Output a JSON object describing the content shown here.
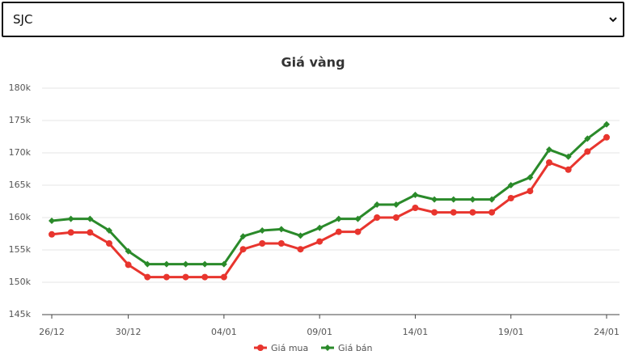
{
  "dropdown": {
    "value": "SJC"
  },
  "chart_data": {
    "type": "line",
    "title": "Giá vàng",
    "categories": [
      "26/12",
      null,
      null,
      null,
      "30/12",
      null,
      null,
      null,
      null,
      "04/01",
      null,
      null,
      null,
      null,
      "09/01",
      null,
      null,
      null,
      null,
      "14/01",
      null,
      null,
      null,
      null,
      "19/01",
      null,
      null,
      null,
      null,
      "24/01"
    ],
    "series": [
      {
        "name": "Giá mua",
        "color": "#e8352e",
        "marker": "circle",
        "values": [
          157.4,
          157.7,
          157.7,
          156.0,
          152.7,
          150.8,
          150.8,
          150.8,
          150.8,
          150.8,
          155.1,
          156.0,
          156.0,
          155.1,
          156.3,
          157.8,
          157.8,
          160.0,
          160.0,
          161.5,
          160.8,
          160.8,
          160.8,
          160.8,
          163.0,
          164.1,
          168.5,
          167.4,
          170.2,
          172.4
        ]
      },
      {
        "name": "Giá bán",
        "color": "#2a8a2a",
        "marker": "diamond",
        "values": [
          159.5,
          159.8,
          159.8,
          158.0,
          154.8,
          152.8,
          152.8,
          152.8,
          152.8,
          152.8,
          157.1,
          158.0,
          158.2,
          157.2,
          158.4,
          159.8,
          159.8,
          162.0,
          162.0,
          163.5,
          162.8,
          162.8,
          162.8,
          162.8,
          165.0,
          166.2,
          170.5,
          169.4,
          172.2,
          174.4
        ]
      }
    ],
    "ylim": [
      145,
      180
    ],
    "yticks": [
      {
        "value": 145,
        "label": "145k"
      },
      {
        "value": 150,
        "label": "150k"
      },
      {
        "value": 155,
        "label": "155k"
      },
      {
        "value": 160,
        "label": "160k"
      },
      {
        "value": 165,
        "label": "165k"
      },
      {
        "value": 170,
        "label": "170k"
      },
      {
        "value": 175,
        "label": "175k"
      },
      {
        "value": 180,
        "label": "180k"
      }
    ],
    "grid": true
  }
}
